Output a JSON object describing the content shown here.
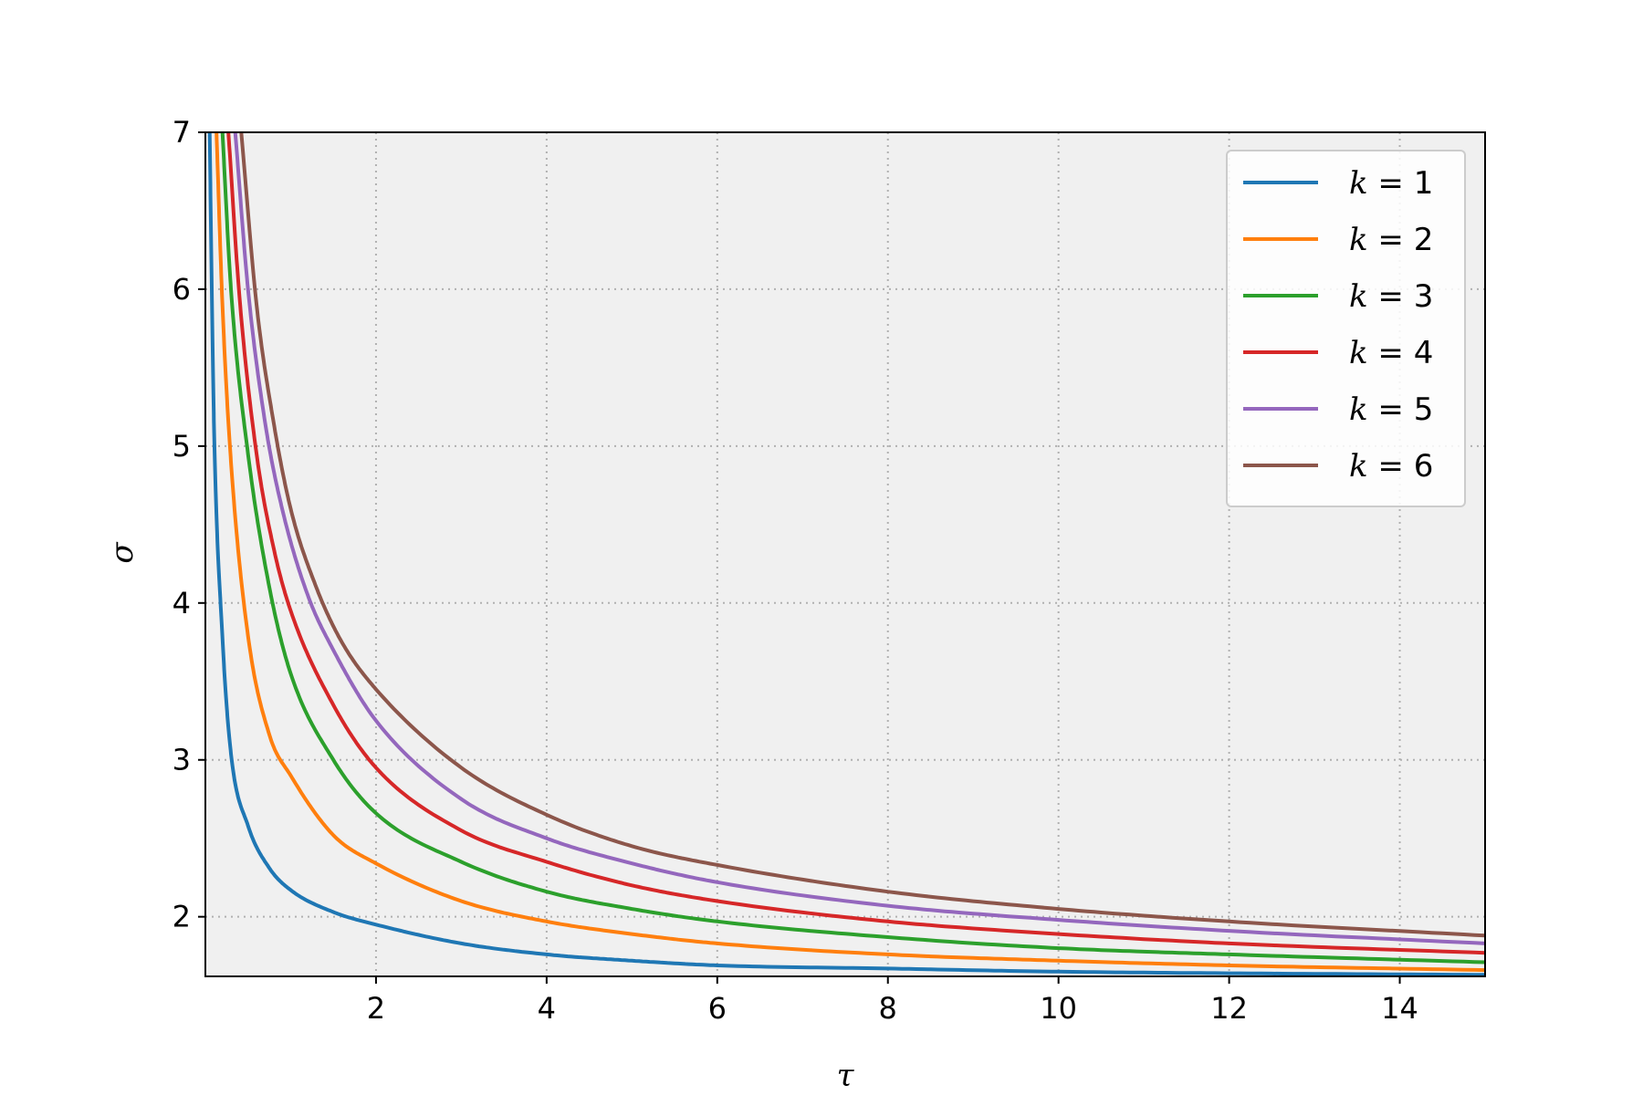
{
  "chart_data": {
    "type": "line",
    "title": "",
    "xlabel": "τ",
    "ylabel": "σ",
    "xlim": [
      0,
      15
    ],
    "ylim": [
      1.62,
      7
    ],
    "xticks": [
      "2",
      "4",
      "6",
      "8",
      "10",
      "12",
      "14"
    ],
    "yticks": [
      "2",
      "3",
      "4",
      "5",
      "6",
      "7"
    ],
    "grid": true,
    "legend_position": "upper right",
    "series": [
      {
        "name": "k = 1",
        "var": "k",
        "value_label": " = 1",
        "color": "#1f77b4",
        "x": [
          0.05,
          0.1,
          0.2,
          0.3,
          0.5,
          0.75,
          1,
          1.5,
          2,
          3,
          4,
          5,
          6,
          8,
          10,
          12,
          15
        ],
        "y": [
          7.0,
          5.16,
          3.78,
          3.04,
          2.58,
          2.31,
          2.17,
          2.03,
          1.95,
          1.83,
          1.76,
          1.72,
          1.69,
          1.67,
          1.65,
          1.64,
          1.63
        ]
      },
      {
        "name": "k = 2",
        "var": "k",
        "value_label": " = 2",
        "color": "#ff7f0e",
        "x": [
          0.13,
          0.2,
          0.3,
          0.5,
          0.75,
          1,
          1.5,
          2,
          3,
          4,
          5,
          6,
          8,
          10,
          12,
          15
        ],
        "y": [
          7.0,
          5.9,
          4.9,
          3.79,
          3.16,
          2.9,
          2.52,
          2.34,
          2.1,
          1.97,
          1.89,
          1.83,
          1.76,
          1.72,
          1.69,
          1.66
        ]
      },
      {
        "name": "k = 3",
        "var": "k",
        "value_label": " = 3",
        "color": "#2ca02c",
        "x": [
          0.2,
          0.3,
          0.5,
          0.75,
          1,
          1.5,
          2,
          3,
          4,
          5,
          6,
          8,
          10,
          12,
          15
        ],
        "y": [
          7.0,
          6.0,
          4.95,
          4.1,
          3.55,
          3.0,
          2.66,
          2.35,
          2.16,
          2.05,
          1.97,
          1.87,
          1.8,
          1.76,
          1.71
        ]
      },
      {
        "name": "k = 4",
        "var": "k",
        "value_label": " = 4",
        "color": "#d62728",
        "x": [
          0.27,
          0.4,
          0.6,
          0.8,
          1,
          1.5,
          2,
          3,
          4,
          5,
          6,
          8,
          10,
          12,
          15
        ],
        "y": [
          7.0,
          5.95,
          4.95,
          4.35,
          3.95,
          3.35,
          2.95,
          2.55,
          2.35,
          2.2,
          2.1,
          1.97,
          1.89,
          1.83,
          1.77
        ]
      },
      {
        "name": "k = 5",
        "var": "k",
        "value_label": " = 5",
        "color": "#9467bd",
        "x": [
          0.35,
          0.5,
          0.7,
          0.9,
          1.2,
          1.5,
          2,
          3,
          4,
          5,
          6,
          8,
          10,
          12,
          15
        ],
        "y": [
          7.0,
          6.0,
          5.15,
          4.6,
          4.05,
          3.7,
          3.25,
          2.75,
          2.5,
          2.34,
          2.22,
          2.07,
          1.98,
          1.91,
          1.83
        ]
      },
      {
        "name": "k = 6",
        "var": "k",
        "value_label": " = 6",
        "color": "#8c564b",
        "x": [
          0.42,
          0.6,
          0.8,
          1.0,
          1.3,
          1.6,
          2,
          3,
          4,
          5,
          6,
          8,
          10,
          12,
          15
        ],
        "y": [
          7.0,
          5.9,
          5.15,
          4.6,
          4.1,
          3.75,
          3.45,
          2.95,
          2.65,
          2.45,
          2.33,
          2.16,
          2.05,
          1.97,
          1.88
        ]
      }
    ]
  }
}
